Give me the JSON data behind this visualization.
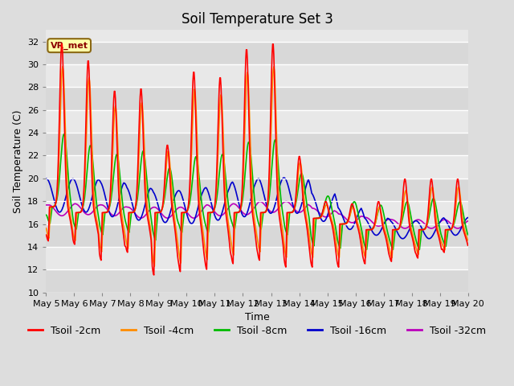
{
  "title": "Soil Temperature Set 3",
  "xlabel": "Time",
  "ylabel": "Soil Temperature (C)",
  "ylim": [
    10,
    33
  ],
  "yticks": [
    10,
    12,
    14,
    16,
    18,
    20,
    22,
    24,
    26,
    28,
    30,
    32
  ],
  "xtick_labels": [
    "May 5",
    "May 6",
    "May 7",
    "May 8",
    "May 9",
    "May 10",
    "May 11",
    "May 12",
    "May 13",
    "May 14",
    "May 15",
    "May 16",
    "May 17",
    "May 18",
    "May 19",
    "May 20"
  ],
  "series_colors": [
    "#ff0000",
    "#ff8c00",
    "#00bb00",
    "#0000cc",
    "#bb00bb"
  ],
  "series_labels": [
    "Tsoil -2cm",
    "Tsoil -4cm",
    "Tsoil -8cm",
    "Tsoil -16cm",
    "Tsoil -32cm"
  ],
  "annotation_text": "VR_met",
  "bg_color": "#dddddd",
  "plot_bg_color": "#e8e8e8",
  "grid_color": "#ffffff",
  "title_fontsize": 12,
  "label_fontsize": 9,
  "tick_fontsize": 8,
  "legend_fontsize": 9,
  "linewidth": 1.2
}
